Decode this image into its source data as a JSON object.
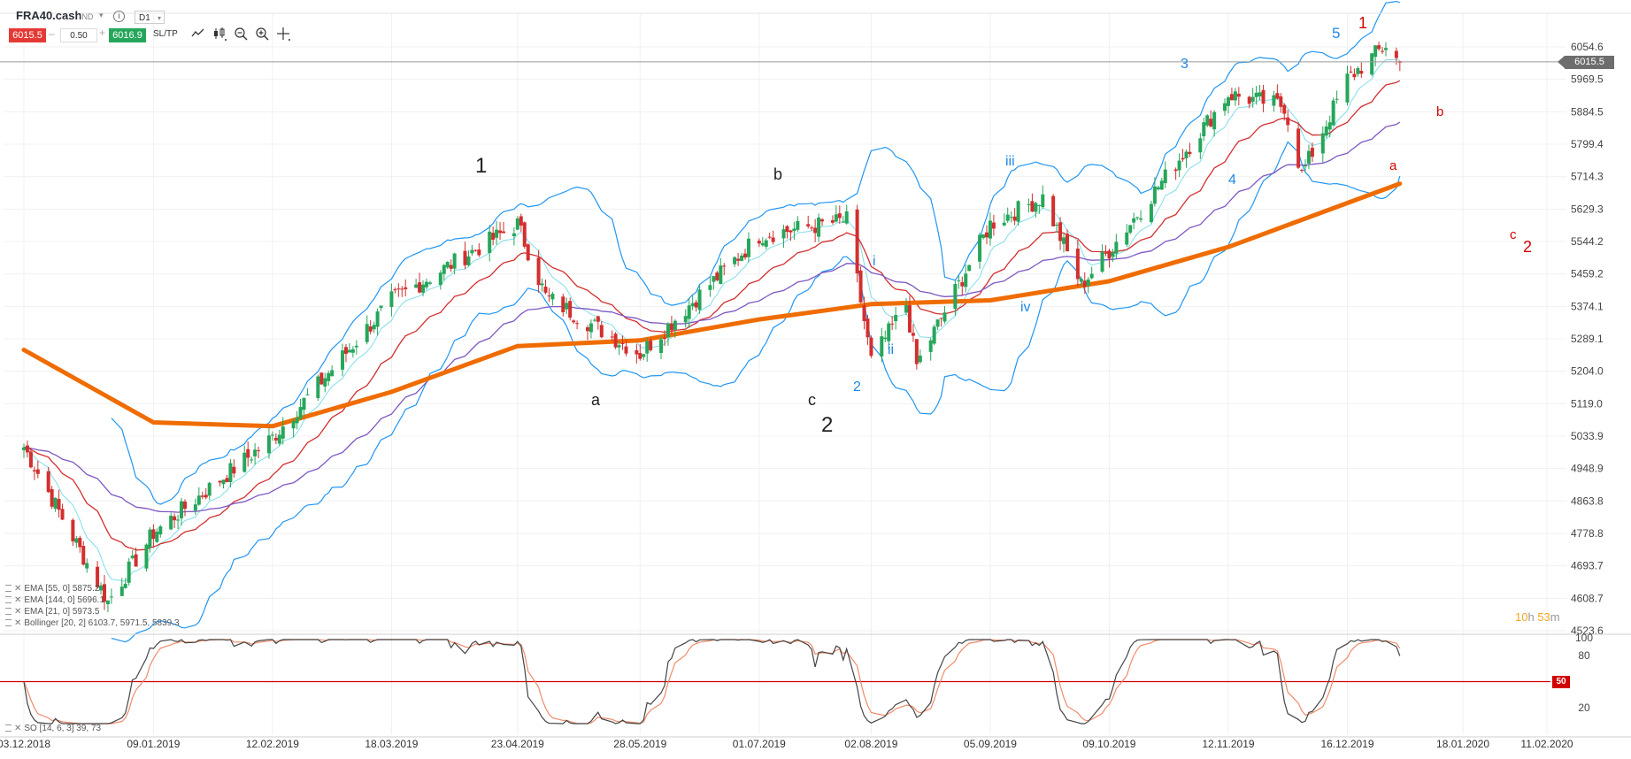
{
  "toolbar": {
    "symbol": "FRA40.cash",
    "market_tag": "IND",
    "timeframe": "D1",
    "sell_price": "6015.5",
    "volume": "0.50",
    "buy_price": "6016.9",
    "sltp_label": "SL/TP",
    "icons": [
      "line-chart-icon",
      "candles-icon",
      "zoom-out-icon",
      "zoom-in-icon",
      "crosshair-icon"
    ]
  },
  "price_axis": [
    "6054.6",
    "5969.5",
    "5884.5",
    "5799.4",
    "5714.3",
    "5629.3",
    "5544.2",
    "5459.2",
    "5374.1",
    "5289.1",
    "5204.0",
    "5119.0",
    "5033.9",
    "4948.9",
    "4863.8",
    "4778.8",
    "4693.7",
    "4608.7",
    "4523.6"
  ],
  "current_price": "6015.5",
  "time_axis": [
    "03.12.2018",
    "09.01.2019",
    "12.02.2019",
    "18.03.2019",
    "23.04.2019",
    "28.05.2019",
    "01.07.2019",
    "02.08.2019",
    "05.09.2019",
    "09.10.2019",
    "12.11.2019",
    "16.12.2019",
    "18.01.2020",
    "11.02.2020"
  ],
  "indicators": [
    "EMA [55, 0] 5875.2",
    "EMA [144, 0] 5696.1",
    "EMA [21, 0] 5973.5",
    "Bollinger [20, 2] 6103.7, 5971.5, 5839.3"
  ],
  "oscillator": {
    "label": "SO [14, 6, 3] 39, 73",
    "levels": [
      "100",
      "80",
      "20"
    ],
    "mid_level": "50"
  },
  "countdown": {
    "hours": "10",
    "h": "h",
    "minutes": "53",
    "m": "m"
  },
  "wave_labels": {
    "black": [
      "1",
      "b",
      "a",
      "c",
      "2"
    ],
    "blue": [
      "3",
      "iii",
      "i",
      "ii",
      "iv",
      "2",
      "4",
      "5"
    ],
    "red": [
      "1",
      "b",
      "a",
      "c",
      "2"
    ]
  },
  "colors": {
    "bull_candle": "#26a65b",
    "bear_candle": "#d32f2f",
    "bollinger": "#2196f3",
    "ema_long": "#ef6c00",
    "ema_mid": "#7e57c2",
    "ema_fast": "#d32f2f",
    "ema_fast2": "#80deea",
    "stoch_k": "#444444",
    "stoch_d": "#ef8a6a",
    "wave_blue": "#1e88e5",
    "wave_red": "#d50000"
  },
  "chart_data": {
    "type": "candlestick",
    "symbol": "FRA40.cash",
    "timeframe": "D1",
    "ylim": [
      4523.6,
      6096
    ],
    "x_range": [
      "03.12.2018",
      "11.02.2020"
    ],
    "anchors": [
      [
        "03.12.2018",
        5005
      ],
      [
        "27.12.2018",
        4600
      ],
      [
        "09.01.2019",
        4780
      ],
      [
        "12.02.2019",
        5030
      ],
      [
        "18.03.2019",
        5390
      ],
      [
        "23.04.2019",
        5590
      ],
      [
        "01.05.2019",
        5400
      ],
      [
        "28.05.2019",
        5250
      ],
      [
        "01.07.2019",
        5560
      ],
      [
        "26.07.2019",
        5600
      ],
      [
        "02.08.2019",
        5230
      ],
      [
        "12.08.2019",
        5380
      ],
      [
        "15.08.2019",
        5220
      ],
      [
        "05.09.2019",
        5590
      ],
      [
        "20.09.2019",
        5660
      ],
      [
        "01.10.2019",
        5430
      ],
      [
        "09.10.2019",
        5520
      ],
      [
        "12.11.2019",
        5930
      ],
      [
        "28.11.2019",
        5900
      ],
      [
        "03.12.2019",
        5720
      ],
      [
        "16.12.2019",
        5970
      ],
      [
        "27.12.2019",
        6060
      ],
      [
        "31.12.2019",
        6010
      ]
    ],
    "ema_144_path": [
      [
        "03.12.2018",
        5260
      ],
      [
        "09.01.2019",
        5070
      ],
      [
        "12.02.2019",
        5060
      ],
      [
        "18.03.2019",
        5150
      ],
      [
        "23.04.2019",
        5270
      ],
      [
        "28.05.2019",
        5285
      ],
      [
        "01.07.2019",
        5340
      ],
      [
        "02.08.2019",
        5380
      ],
      [
        "05.09.2019",
        5390
      ],
      [
        "09.10.2019",
        5440
      ],
      [
        "12.11.2019",
        5530
      ],
      [
        "31.12.2019",
        5696
      ]
    ],
    "last_values": {
      "ema_55": 5875.2,
      "ema_144": 5696.1,
      "ema_21": 5973.5,
      "bollinger_upper": 6103.7,
      "bollinger_mid": 5971.5,
      "bollinger_lower": 5839.3,
      "stoch_k": 39,
      "stoch_d": 73
    }
  }
}
